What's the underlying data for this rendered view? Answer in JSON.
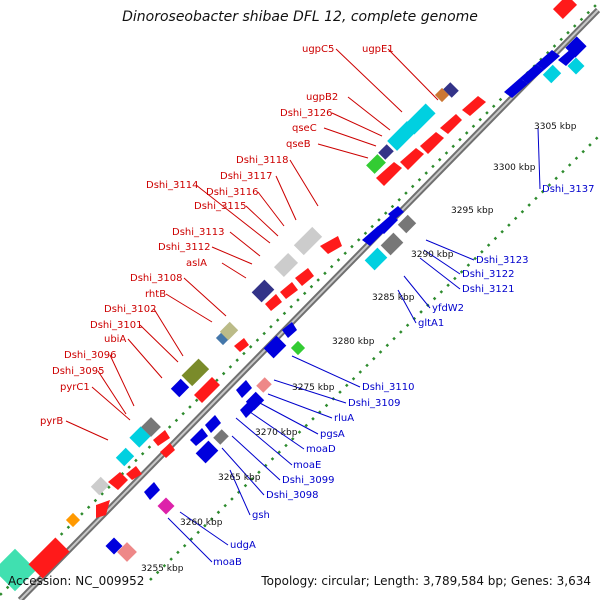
{
  "map": {
    "title": "Dinoroseobacter shibae DFL 12, complete genome",
    "accession": "Accession: NC_009952",
    "summary": "Topology: circular; Length: 3,789,584 bp; Genes: 3,634",
    "colors": {
      "forward_labels": "#cc0000",
      "reverse_labels": "#0000cc",
      "backbone": "#8c8c8c",
      "ticks": "#2e8b2e"
    }
  },
  "ruler": {
    "labels": [
      "3255 kbp",
      "3260 kbp",
      "3265 kbp",
      "3270 kbp",
      "3275 kbp",
      "3280 kbp",
      "3285 kbp",
      "3290 kbp",
      "3295 kbp",
      "3300 kbp",
      "3305 kbp"
    ]
  },
  "forward_labels": [
    "pyrB",
    "pyrC1",
    "Dshi_3095",
    "Dshi_3096",
    "ubiA",
    "Dshi_3101",
    "Dshi_3102",
    "rhtB",
    "Dshi_3108",
    "aslA",
    "Dshi_3112",
    "Dshi_3113",
    "Dshi_3114",
    "Dshi_3115",
    "Dshi_3116",
    "Dshi_3117",
    "Dshi_3118",
    "qseB",
    "qseC",
    "Dshi_3126",
    "ugpB2",
    "ugpC5",
    "ugpE1"
  ],
  "reverse_labels": [
    "moaB",
    "udgA",
    "gsh",
    "Dshi_3098",
    "Dshi_3099",
    "moaE",
    "moaD",
    "pgsA",
    "rluA",
    "Dshi_3109",
    "Dshi_3110",
    "gltA1",
    "yfdW2",
    "Dshi_3121",
    "Dshi_3122",
    "Dshi_3123",
    "Dshi_3137"
  ]
}
